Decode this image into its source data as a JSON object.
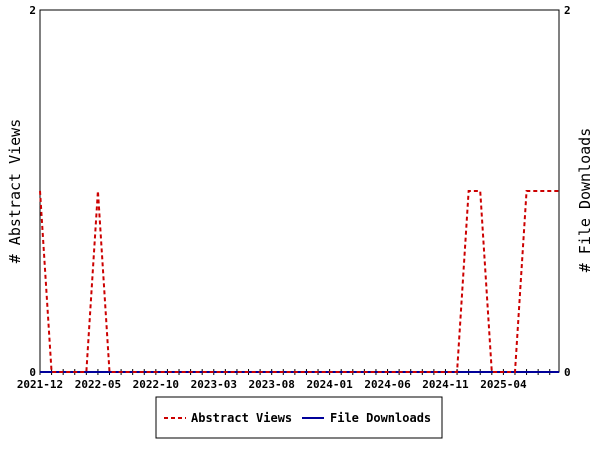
{
  "chart_data": {
    "type": "line",
    "x": [
      "2021-12",
      "2022-01",
      "2022-02",
      "2022-03",
      "2022-04",
      "2022-05",
      "2022-06",
      "2022-07",
      "2022-08",
      "2022-09",
      "2022-10",
      "2022-11",
      "2022-12",
      "2023-01",
      "2023-02",
      "2023-03",
      "2023-04",
      "2023-05",
      "2023-06",
      "2023-07",
      "2023-08",
      "2023-09",
      "2023-10",
      "2023-11",
      "2023-12",
      "2024-01",
      "2024-02",
      "2024-03",
      "2024-04",
      "2024-05",
      "2024-06",
      "2024-07",
      "2024-08",
      "2024-09",
      "2024-10",
      "2024-11",
      "2024-12",
      "2025-01",
      "2025-02",
      "2025-03",
      "2025-04",
      "2025-05",
      "2025-06",
      "2025-07",
      "2025-08"
    ],
    "x_tick_labels": [
      "2021-12",
      "2022-05",
      "2022-10",
      "2023-03",
      "2023-08",
      "2024-01",
      "2024-06",
      "2024-11",
      "2025-04"
    ],
    "series": [
      {
        "name": "Abstract Views",
        "axis": "left",
        "color": "#cc0000",
        "dash": true,
        "values": [
          1,
          0,
          0,
          0,
          0,
          1,
          0,
          0,
          0,
          0,
          0,
          0,
          0,
          0,
          0,
          0,
          0,
          0,
          0,
          0,
          0,
          0,
          0,
          0,
          0,
          0,
          0,
          0,
          0,
          0,
          0,
          0,
          0,
          0,
          0,
          0,
          0,
          1,
          1,
          0,
          0,
          0,
          1,
          1,
          1
        ]
      },
      {
        "name": "File Downloads",
        "axis": "right",
        "color": "#000099",
        "dash": false,
        "values": [
          0,
          0,
          0,
          0,
          0,
          0,
          0,
          0,
          0,
          0,
          0,
          0,
          0,
          0,
          0,
          0,
          0,
          0,
          0,
          0,
          0,
          0,
          0,
          0,
          0,
          0,
          0,
          0,
          0,
          0,
          0,
          0,
          0,
          0,
          0,
          0,
          0,
          0,
          0,
          0,
          0,
          0,
          0,
          0,
          0
        ]
      }
    ],
    "ylabel_left": "# Abstract Views",
    "ylabel_right": "# File Downloads",
    "ylim_left": [
      0,
      2
    ],
    "ylim_right": [
      0,
      2
    ],
    "y_ticks_left": [
      "0",
      "2"
    ],
    "y_ticks_right": [
      "0",
      "2"
    ],
    "grid": false,
    "legend_position": "bottom"
  }
}
